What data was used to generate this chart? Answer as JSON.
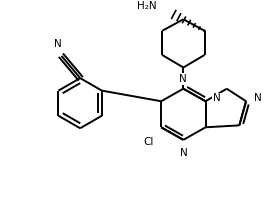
{
  "background": "#ffffff",
  "line_color": "#000000",
  "line_width": 1.4,
  "font_size": 7.5,
  "figsize": [
    2.78,
    2.17
  ],
  "dpi": 100,
  "xlim": [
    0,
    278
  ],
  "ylim": [
    0,
    217
  ]
}
